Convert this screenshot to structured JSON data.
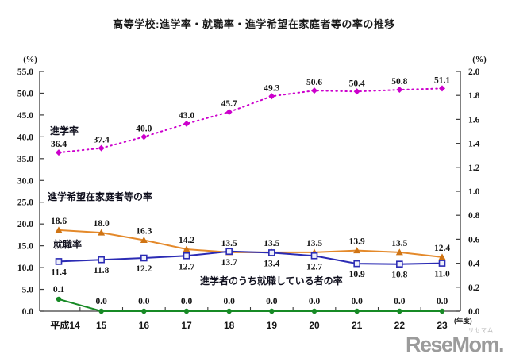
{
  "title": "高等学校:進学率・就職率・進学希望在家庭者等の率の推移",
  "watermark": {
    "brand": "ReseMom.",
    "ruby": "リセマム"
  },
  "chart_data": {
    "type": "line",
    "title": "高等学校:進学率・就職率・進学希望在家庭者等の率の推移",
    "categories": [
      "平成14",
      "15",
      "16",
      "17",
      "18",
      "19",
      "20",
      "21",
      "22",
      "23"
    ],
    "x_axis_suffix": "(年度)",
    "left_axis": {
      "unit": "(%)",
      "min": 0,
      "max": 55,
      "step": 5
    },
    "right_axis": {
      "unit": "(%)",
      "min": 0,
      "max": 2,
      "step": 0.2
    },
    "grid": false,
    "legend_position": "inline-annotations",
    "series": [
      {
        "key": "shingaku-ritsu",
        "name": "進学率",
        "axis": "left",
        "color": "#cc00cc",
        "marker": "diamond",
        "marker_color": "#cc00cc",
        "line_style": "dotted",
        "label_side": "above",
        "values": [
          36.4,
          37.4,
          40.0,
          43.0,
          45.7,
          49.3,
          50.6,
          50.4,
          50.8,
          51.1
        ]
      },
      {
        "key": "shingaku-kibo-zaikatei",
        "name": "進学希望在家庭者等の率",
        "axis": "left",
        "color": "#e4892a",
        "marker": "triangle",
        "marker_color": "#cf7414",
        "line_style": "solid",
        "label_side": "above",
        "values": [
          18.6,
          18.0,
          16.3,
          14.2,
          13.5,
          13.5,
          13.5,
          13.9,
          13.5,
          12.4
        ]
      },
      {
        "key": "shushoku-ritsu",
        "name": "就職率",
        "axis": "left",
        "color": "#2b2bb4",
        "marker": "square",
        "marker_color": "#2b2bb4",
        "line_style": "solid",
        "label_side": "below",
        "values": [
          11.4,
          11.8,
          12.2,
          12.7,
          13.7,
          13.4,
          12.7,
          10.9,
          10.8,
          11.0
        ]
      },
      {
        "key": "shingakusha-shushoku",
        "name": "進学者のうち就職している者の率",
        "axis": "right",
        "color": "#178a25",
        "marker": "circle",
        "marker_color": "#178a25",
        "line_style": "solid",
        "label_side": "above",
        "values": [
          0.1,
          0.0,
          0.0,
          0.0,
          0.0,
          0.0,
          0.0,
          0.0,
          0.0,
          0.0
        ]
      }
    ]
  }
}
